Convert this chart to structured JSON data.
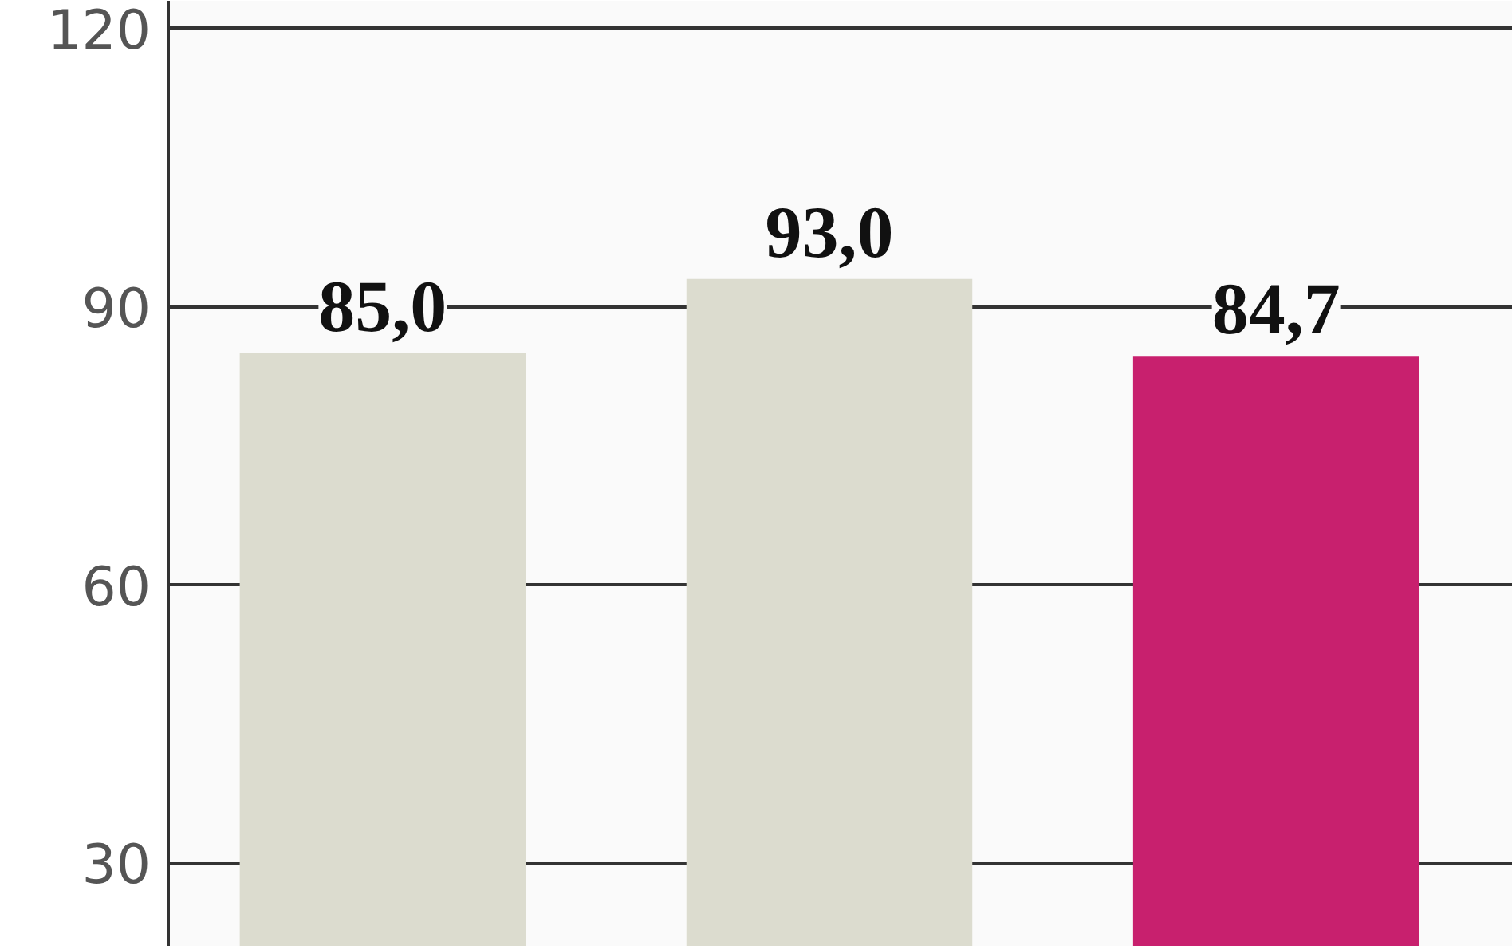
{
  "chart_data": {
    "type": "bar",
    "categories": [
      null,
      null,
      null
    ],
    "values": [
      85.0,
      93.0,
      84.7
    ],
    "colors": [
      "#dcdccf",
      "#dcdccf",
      "#c8206e"
    ],
    "value_labels": [
      "85,0",
      "93,0",
      "84,7"
    ],
    "ylim": [
      21,
      123
    ],
    "yticks": [
      30,
      60,
      90,
      120
    ],
    "grid": "y"
  }
}
